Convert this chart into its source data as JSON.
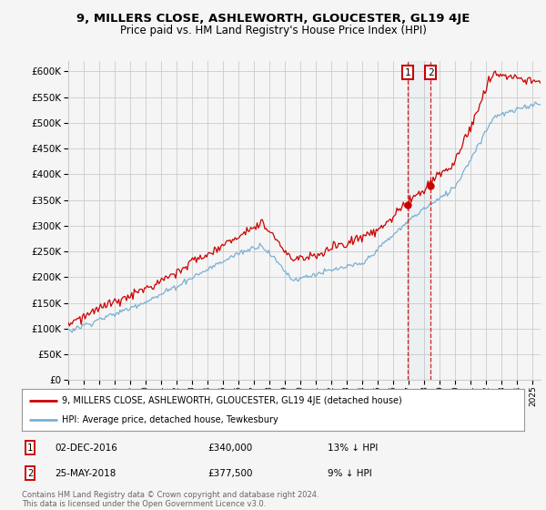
{
  "title": "9, MILLERS CLOSE, ASHLEWORTH, GLOUCESTER, GL19 4JE",
  "subtitle": "Price paid vs. HM Land Registry's House Price Index (HPI)",
  "yticks": [
    0,
    50000,
    100000,
    150000,
    200000,
    250000,
    300000,
    350000,
    400000,
    450000,
    500000,
    550000,
    600000
  ],
  "sale1_date": "02-DEC-2016",
  "sale1_price": 340000,
  "sale2_date": "25-MAY-2018",
  "sale2_price": 377500,
  "line1_color": "#cc0000",
  "line2_color": "#7ab0d4",
  "vline_color": "#cc0000",
  "grid_color": "#cccccc",
  "background_color": "#f5f5f5",
  "legend_label1": "9, MILLERS CLOSE, ASHLEWORTH, GLOUCESTER, GL19 4JE (detached house)",
  "legend_label2": "HPI: Average price, detached house, Tewkesbury",
  "footer": "Contains HM Land Registry data © Crown copyright and database right 2024.\nThis data is licensed under the Open Government Licence v3.0.",
  "sale1_x": 2016.92,
  "sale2_x": 2018.4,
  "xstart": 1995.0,
  "xend": 2025.5,
  "ymin": 0,
  "ymax": 620000
}
